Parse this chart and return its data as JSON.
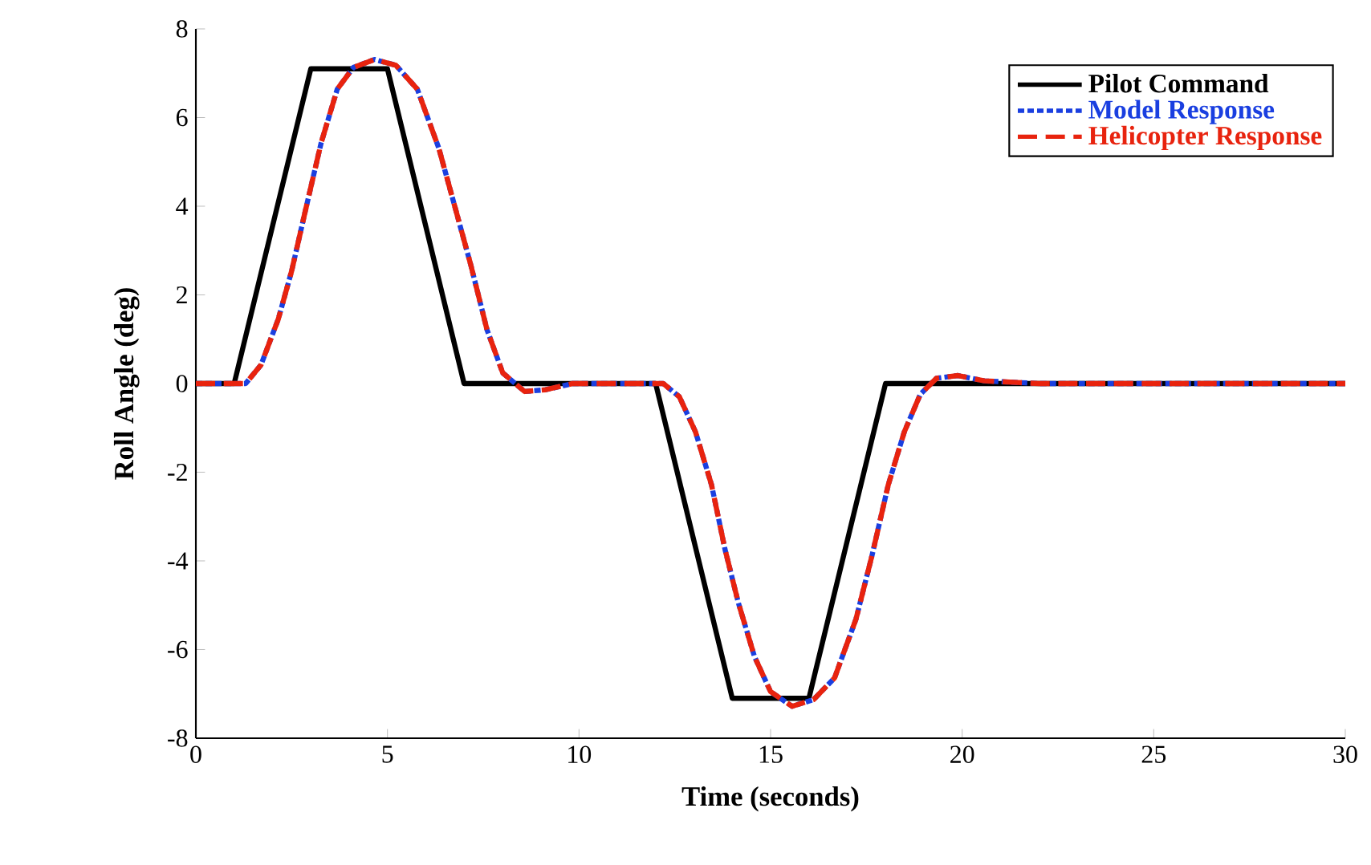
{
  "chart_data": {
    "type": "line",
    "xlabel": "Time (seconds)",
    "ylabel": "Roll Angle (deg)",
    "xlim": [
      0,
      30
    ],
    "ylim": [
      -8,
      8
    ],
    "xticks": [
      0,
      5,
      10,
      15,
      20,
      25,
      30
    ],
    "yticks": [
      -8,
      -6,
      -4,
      -2,
      0,
      2,
      4,
      6,
      8
    ],
    "grid": false,
    "legend": "top right",
    "series": [
      {
        "name": "Pilot Command",
        "color": "#000000",
        "line_style": "solid",
        "x": [
          0,
          1,
          3,
          5,
          7,
          12,
          14,
          16,
          18,
          30
        ],
        "values": [
          0,
          0,
          7.1,
          7.1,
          0,
          0,
          -7.1,
          -7.1,
          0,
          0
        ]
      },
      {
        "name": "Model Response",
        "color": "#1a3fe0",
        "line_style": "dotted",
        "x": [
          0,
          0.9,
          1.3,
          1.7,
          2.15,
          2.5,
          2.85,
          3.27,
          3.69,
          4.11,
          4.66,
          5.22,
          5.78,
          6.34,
          6.76,
          7.18,
          7.6,
          8.01,
          8.58,
          9.13,
          9.83,
          12.2,
          12.62,
          13.04,
          13.46,
          13.81,
          14.16,
          14.58,
          15.0,
          15.56,
          16.12,
          16.67,
          17.23,
          17.65,
          18.07,
          18.49,
          18.91,
          19.33,
          19.89,
          20.58,
          22,
          30
        ],
        "values": [
          0,
          0,
          0,
          0.42,
          1.45,
          2.54,
          3.87,
          5.43,
          6.64,
          7.13,
          7.31,
          7.18,
          6.64,
          5.31,
          3.99,
          2.66,
          1.21,
          0.24,
          -0.18,
          -0.14,
          0,
          0,
          -0.3,
          -1.09,
          -2.29,
          -3.74,
          -4.95,
          -6.16,
          -6.95,
          -7.28,
          -7.13,
          -6.64,
          -5.31,
          -3.87,
          -2.29,
          -1.09,
          -0.24,
          0.12,
          0.18,
          0.06,
          0,
          0
        ]
      },
      {
        "name": "Helicopter Response",
        "color": "#e8230e",
        "line_style": "dashed",
        "x": [
          0,
          0.9,
          1.3,
          1.7,
          2.15,
          2.5,
          2.85,
          3.27,
          3.69,
          4.11,
          4.66,
          5.22,
          5.78,
          6.34,
          6.76,
          7.18,
          7.6,
          8.01,
          8.58,
          9.13,
          9.83,
          12.2,
          12.62,
          13.04,
          13.46,
          13.81,
          14.16,
          14.58,
          15.0,
          15.56,
          16.12,
          16.67,
          17.23,
          17.65,
          18.07,
          18.49,
          18.91,
          19.33,
          19.89,
          20.58,
          22,
          30
        ],
        "values": [
          0,
          0,
          0,
          0.42,
          1.45,
          2.54,
          3.87,
          5.43,
          6.64,
          7.13,
          7.31,
          7.18,
          6.64,
          5.31,
          3.99,
          2.66,
          1.21,
          0.24,
          -0.18,
          -0.14,
          0,
          0,
          -0.3,
          -1.09,
          -2.29,
          -3.74,
          -4.95,
          -6.16,
          -6.95,
          -7.28,
          -7.13,
          -6.64,
          -5.31,
          -3.87,
          -2.29,
          -1.09,
          -0.24,
          0.12,
          0.18,
          0.06,
          0,
          0
        ]
      }
    ]
  }
}
